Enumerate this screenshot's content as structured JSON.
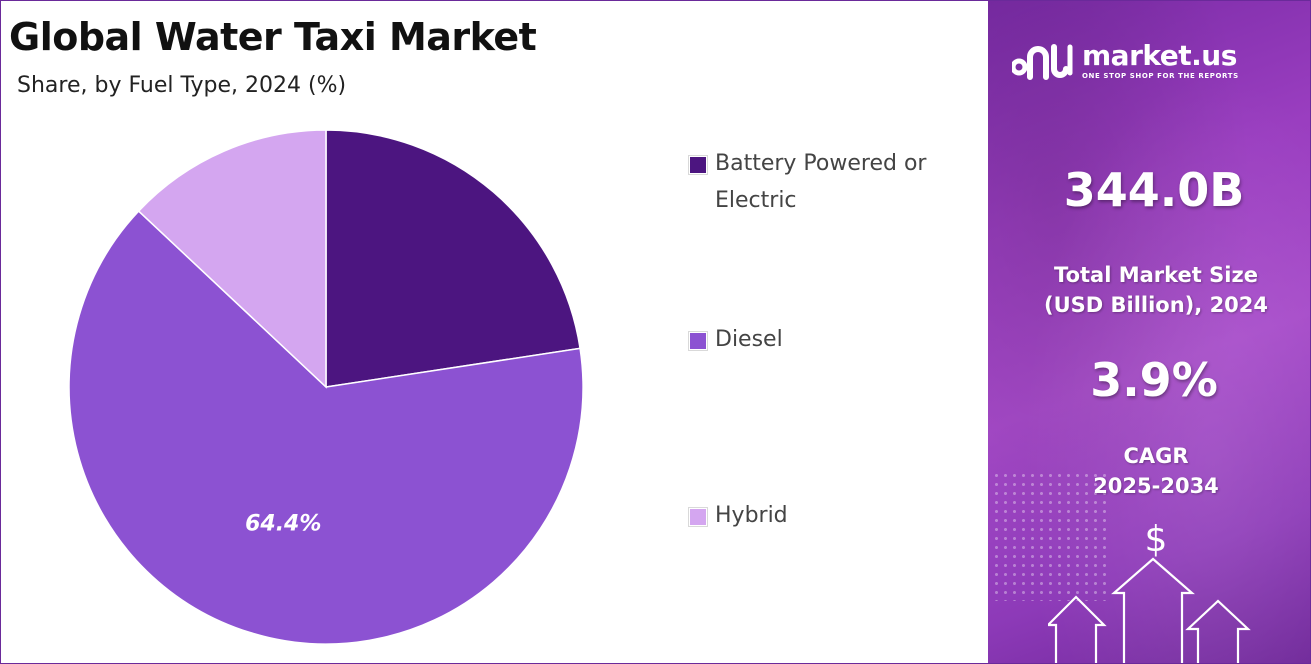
{
  "header": {
    "title": "Global Water Taxi Market",
    "subtitle": "Share, by Fuel Type, 2024 (%)"
  },
  "chart_data": {
    "type": "pie",
    "title": "Global Water Taxi Market",
    "subtitle": "Share, by Fuel Type, 2024 (%)",
    "categories": [
      "Battery Powered or Electric",
      "Diesel",
      "Hybrid"
    ],
    "values": [
      22.6,
      64.4,
      13.0
    ],
    "colors": [
      "#4c1580",
      "#8c52d2",
      "#d4a6f0"
    ],
    "data_labels": [
      "",
      "64.4%",
      ""
    ],
    "start_angle_deg": 0,
    "direction": "clockwise",
    "legend_position": "right"
  },
  "legend": {
    "items": [
      {
        "label": "Battery Powered or Electric",
        "color": "#4c1580"
      },
      {
        "label": "Diesel",
        "color": "#8c52d2"
      },
      {
        "label": "Hybrid",
        "color": "#d4a6f0"
      }
    ]
  },
  "brand": {
    "name": "market.us",
    "tagline": "ONE STOP SHOP FOR THE REPORTS",
    "icon": "market-us-logo-icon"
  },
  "stats": {
    "market_size_value": "344.0B",
    "market_size_label_line1": "Total Market Size",
    "market_size_label_line2": "(USD Billion), 2024",
    "cagr_value": "3.9%",
    "cagr_label_line1": "CAGR",
    "cagr_label_line2": "2025-2034"
  },
  "decor": {
    "currency_icon": "$",
    "arrows_icon": "growth-arrows-icon"
  },
  "colors": {
    "accent_dark": "#4c1580",
    "accent_mid": "#8c52d2",
    "accent_light": "#d4a6f0",
    "panel_purple": "#9a3ec0"
  }
}
